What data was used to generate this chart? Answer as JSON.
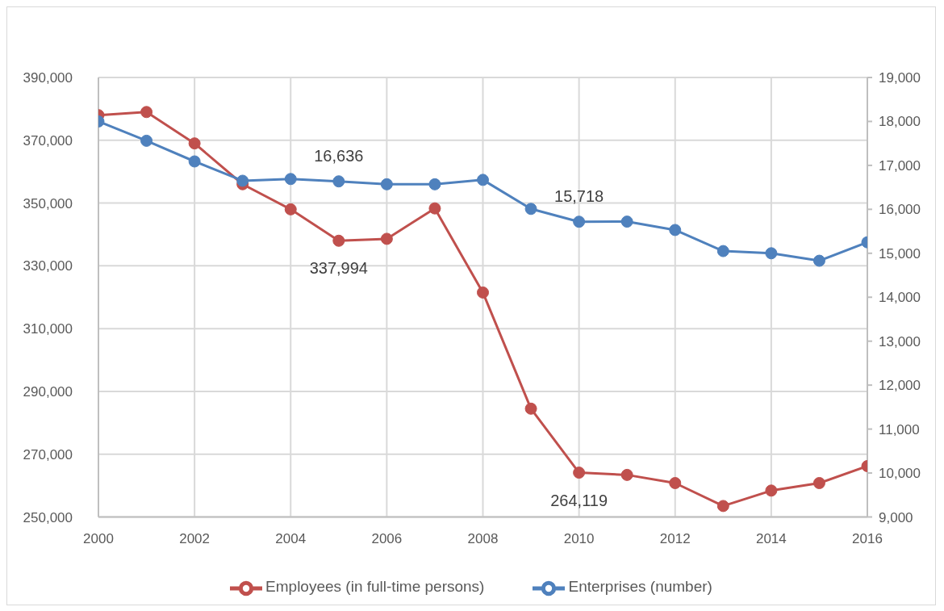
{
  "chart_data": {
    "type": "line",
    "x": [
      2000,
      2001,
      2002,
      2003,
      2004,
      2005,
      2006,
      2007,
      2008,
      2009,
      2010,
      2011,
      2012,
      2013,
      2014,
      2015,
      2016
    ],
    "series": [
      {
        "name": "Employees (in full-time persons)",
        "color": "#c0504d",
        "values": [
          378000,
          379000,
          369000,
          356000,
          348000,
          337994,
          338600,
          348300,
          321500,
          284500,
          264119,
          263400,
          260800,
          253500,
          258400,
          260800,
          266200
        ],
        "value_labels": [
          null,
          null,
          null,
          null,
          null,
          "337,994",
          null,
          null,
          null,
          null,
          "264,119",
          null,
          null,
          null,
          null,
          null,
          null
        ]
      },
      {
        "name": "Enterprises (number)",
        "color": "#4f81bd",
        "axis": "y2",
        "values": [
          18000,
          17560,
          17090,
          16650,
          16690,
          16636,
          16570,
          16570,
          16670,
          16010,
          15718,
          15720,
          15530,
          15050,
          15000,
          14830,
          15250
        ],
        "value_labels": [
          null,
          null,
          null,
          null,
          null,
          "16,636",
          null,
          null,
          null,
          null,
          "15,718",
          null,
          null,
          null,
          null,
          null,
          null
        ]
      }
    ],
    "xlim": [
      2000,
      2016
    ],
    "xticks": [
      2000,
      2002,
      2004,
      2006,
      2008,
      2010,
      2012,
      2014,
      2016
    ],
    "ylim": [
      250000,
      390000
    ],
    "yticks": [
      {
        "value": 250000,
        "label": "250,000"
      },
      {
        "value": 270000,
        "label": "270,000"
      },
      {
        "value": 290000,
        "label": "290,000"
      },
      {
        "value": 310000,
        "label": "310,000"
      },
      {
        "value": 330000,
        "label": "330,000"
      },
      {
        "value": 350000,
        "label": "350,000"
      },
      {
        "value": 370000,
        "label": "370,000"
      },
      {
        "value": 390000,
        "label": "390,000"
      }
    ],
    "y2lim": [
      9000,
      19000
    ],
    "y2ticks": [
      {
        "value": 9000,
        "label": "9,000"
      },
      {
        "value": 10000,
        "label": "10,000"
      },
      {
        "value": 11000,
        "label": "11,000"
      },
      {
        "value": 12000,
        "label": "12,000"
      },
      {
        "value": 13000,
        "label": "13,000"
      },
      {
        "value": 14000,
        "label": "14,000"
      },
      {
        "value": 15000,
        "label": "15,000"
      },
      {
        "value": 16000,
        "label": "16,000"
      },
      {
        "value": 17000,
        "label": "17,000"
      },
      {
        "value": 18000,
        "label": "18,000"
      },
      {
        "value": 19000,
        "label": "19,000"
      }
    ],
    "grid": true,
    "legend": "bottom",
    "marker": "circle",
    "line_style": "solid"
  }
}
